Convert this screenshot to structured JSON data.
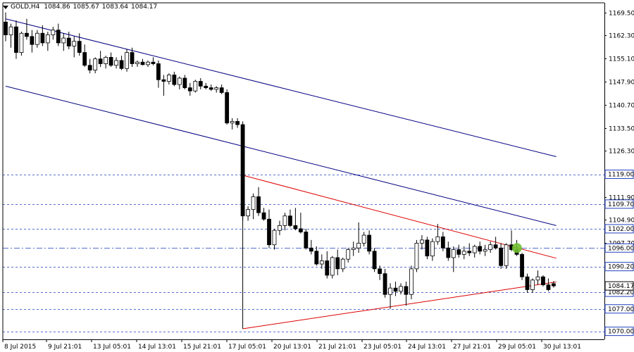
{
  "window": {
    "symbol_timeframe": "GOLD,H4",
    "ohlc": [
      "1084.86",
      "1085.67",
      "1083.64",
      "1084.17"
    ]
  },
  "price_axis": {
    "range": [
      1067.5,
      1172.5
    ],
    "ticks": [
      "1169.50",
      "1162.30",
      "1155.10",
      "1147.90",
      "1140.70",
      "1133.50",
      "1126.30",
      "1111.90",
      "1104.90",
      "1097.70"
    ],
    "tick_values": [
      1169.5,
      1162.3,
      1155.1,
      1147.9,
      1140.7,
      1133.5,
      1126.3,
      1111.9,
      1104.9,
      1097.7
    ]
  },
  "time_axis": {
    "labels": [
      "8 Jul 2015",
      "9 Jul 21:01",
      "13 Jul 05:01",
      "14 Jul 13:01",
      "15 Jul 21:01",
      "17 Jul 05:01",
      "20 Jul 13:01",
      "21 Jul 21:01",
      "23 Jul 05:01",
      "24 Jul 13:01",
      "27 Jul 21:01",
      "29 Jul 05:01",
      "30 Jul 13:01"
    ]
  },
  "levels": [
    {
      "label": "1119.00",
      "value": 1119.0,
      "style": "dashed"
    },
    {
      "label": "1109.70",
      "value": 1109.7,
      "style": "dashed"
    },
    {
      "label": "1102.00",
      "value": 1102.0,
      "style": "dashed"
    },
    {
      "label": "1096.00",
      "value": 1096.0,
      "style": "dashdot"
    },
    {
      "label": "1090.20",
      "value": 1090.2,
      "style": "dashed"
    },
    {
      "label": "1082.20",
      "value": 1082.2,
      "style": "dashed"
    },
    {
      "label": "1077.00",
      "value": 1077.0,
      "style": "dashed"
    },
    {
      "label": "1070.00",
      "value": 1070.0,
      "style": "dashed"
    }
  ],
  "current_price": {
    "label": "1084.17",
    "value": 1084.17
  },
  "colors": {
    "level_line": "#1f3fbf",
    "channel_line": "#000080",
    "triangle_line": "#dd0000",
    "bull_body": "#ffffff",
    "bear_body": "#000000",
    "marker": "#70c030",
    "axis_label_border": "#1f3fbf"
  },
  "chart_data": {
    "type": "candlestick",
    "symbol": "GOLD",
    "timeframe": "H4",
    "candles": [
      [
        1166.5,
        1169.5,
        1160.5,
        1162.5
      ],
      [
        1162.5,
        1166.0,
        1158.5,
        1165.0
      ],
      [
        1165.0,
        1167.0,
        1155.0,
        1157.0
      ],
      [
        1157.0,
        1163.5,
        1156.0,
        1163.0
      ],
      [
        1163.0,
        1167.5,
        1161.0,
        1162.0
      ],
      [
        1162.0,
        1164.0,
        1157.0,
        1159.5
      ],
      [
        1159.5,
        1164.0,
        1158.5,
        1163.0
      ],
      [
        1163.0,
        1165.5,
        1159.0,
        1160.0
      ],
      [
        1160.0,
        1163.5,
        1157.5,
        1162.5
      ],
      [
        1162.5,
        1165.0,
        1161.0,
        1164.0
      ],
      [
        1164.0,
        1166.0,
        1159.0,
        1160.0
      ],
      [
        1160.0,
        1163.0,
        1157.5,
        1161.5
      ],
      [
        1161.5,
        1163.5,
        1158.0,
        1159.0
      ],
      [
        1159.0,
        1162.0,
        1155.5,
        1160.5
      ],
      [
        1160.5,
        1163.0,
        1156.0,
        1157.0
      ],
      [
        1157.0,
        1159.5,
        1152.5,
        1153.0
      ],
      [
        1153.0,
        1155.0,
        1150.5,
        1151.5
      ],
      [
        1151.5,
        1155.5,
        1150.5,
        1155.0
      ],
      [
        1155.0,
        1157.5,
        1152.5,
        1153.5
      ],
      [
        1153.5,
        1156.0,
        1152.0,
        1155.5
      ],
      [
        1155.5,
        1157.0,
        1152.5,
        1153.0
      ],
      [
        1153.0,
        1155.5,
        1152.0,
        1154.5
      ],
      [
        1154.5,
        1156.0,
        1151.5,
        1152.0
      ],
      [
        1152.0,
        1158.0,
        1151.0,
        1157.0
      ],
      [
        1157.0,
        1158.5,
        1152.5,
        1153.5
      ],
      [
        1153.5,
        1154.5,
        1152.5,
        1154.0
      ],
      [
        1154.0,
        1155.0,
        1153.0,
        1153.2
      ],
      [
        1153.2,
        1154.5,
        1152.5,
        1154.0
      ],
      [
        1154.0,
        1155.5,
        1153.0,
        1153.5
      ],
      [
        1153.5,
        1154.5,
        1146.0,
        1148.5
      ],
      [
        1148.5,
        1150.0,
        1143.5,
        1148.0
      ],
      [
        1148.0,
        1150.5,
        1147.0,
        1150.0
      ],
      [
        1150.0,
        1151.0,
        1146.5,
        1147.0
      ],
      [
        1147.0,
        1149.5,
        1145.5,
        1149.0
      ],
      [
        1149.0,
        1150.0,
        1145.5,
        1146.0
      ],
      [
        1146.0,
        1147.5,
        1143.5,
        1145.0
      ],
      [
        1145.0,
        1148.5,
        1144.5,
        1148.0
      ],
      [
        1148.0,
        1149.0,
        1145.5,
        1146.5
      ],
      [
        1146.5,
        1147.5,
        1145.5,
        1146.0
      ],
      [
        1146.0,
        1147.0,
        1145.0,
        1145.5
      ],
      [
        1145.5,
        1146.5,
        1144.5,
        1146.0
      ],
      [
        1146.0,
        1147.0,
        1144.0,
        1144.5
      ],
      [
        1144.5,
        1145.5,
        1134.5,
        1135.0
      ],
      [
        1135.0,
        1136.5,
        1133.0,
        1135.5
      ],
      [
        1135.5,
        1136.5,
        1133.5,
        1134.5
      ],
      [
        1134.5,
        1135.5,
        1104.5,
        1106.0
      ],
      [
        1106.0,
        1109.0,
        1104.5,
        1108.0
      ],
      [
        1108.0,
        1113.0,
        1105.0,
        1112.0
      ],
      [
        1112.0,
        1115.0,
        1106.0,
        1107.0
      ],
      [
        1107.0,
        1108.5,
        1104.5,
        1105.0
      ],
      [
        1105.0,
        1108.0,
        1096.0,
        1097.0
      ],
      [
        1097.0,
        1102.0,
        1095.5,
        1101.5
      ],
      [
        1101.5,
        1104.5,
        1100.0,
        1103.0
      ],
      [
        1103.0,
        1107.0,
        1101.5,
        1106.0
      ],
      [
        1106.0,
        1108.0,
        1102.5,
        1103.0
      ],
      [
        1103.0,
        1108.5,
        1101.5,
        1102.0
      ],
      [
        1102.0,
        1107.0,
        1100.5,
        1101.0
      ],
      [
        1101.0,
        1102.0,
        1095.5,
        1096.0
      ],
      [
        1096.0,
        1098.5,
        1094.0,
        1095.0
      ],
      [
        1095.0,
        1096.5,
        1090.5,
        1091.0
      ],
      [
        1091.0,
        1094.0,
        1089.5,
        1092.0
      ],
      [
        1092.0,
        1095.0,
        1086.5,
        1087.5
      ],
      [
        1087.5,
        1093.5,
        1086.5,
        1093.0
      ],
      [
        1093.0,
        1095.5,
        1087.5,
        1089.5
      ],
      [
        1089.5,
        1093.0,
        1088.5,
        1092.5
      ],
      [
        1092.5,
        1096.0,
        1091.5,
        1095.5
      ],
      [
        1095.5,
        1098.0,
        1093.5,
        1096.0
      ],
      [
        1096.0,
        1104.0,
        1094.5,
        1097.5
      ],
      [
        1097.5,
        1101.0,
        1096.5,
        1100.0
      ],
      [
        1100.0,
        1101.5,
        1094.0,
        1095.0
      ],
      [
        1095.0,
        1096.0,
        1088.5,
        1089.5
      ],
      [
        1089.5,
        1090.5,
        1086.0,
        1088.0
      ],
      [
        1088.0,
        1089.5,
        1080.5,
        1081.5
      ],
      [
        1081.5,
        1085.0,
        1077.0,
        1083.5
      ],
      [
        1083.5,
        1085.5,
        1081.0,
        1082.5
      ],
      [
        1082.5,
        1085.0,
        1081.5,
        1084.0
      ],
      [
        1084.0,
        1085.5,
        1078.0,
        1081.5
      ],
      [
        1081.5,
        1090.5,
        1080.0,
        1089.5
      ],
      [
        1089.5,
        1098.5,
        1088.5,
        1097.5
      ],
      [
        1097.5,
        1100.0,
        1095.5,
        1098.5
      ],
      [
        1098.5,
        1099.5,
        1092.5,
        1093.5
      ],
      [
        1093.5,
        1099.0,
        1092.0,
        1098.0
      ],
      [
        1098.0,
        1103.5,
        1097.0,
        1099.5
      ],
      [
        1099.5,
        1101.0,
        1095.0,
        1096.0
      ],
      [
        1096.0,
        1098.0,
        1092.0,
        1093.0
      ],
      [
        1093.0,
        1096.5,
        1088.5,
        1095.5
      ],
      [
        1095.5,
        1097.0,
        1093.0,
        1094.0
      ],
      [
        1094.0,
        1096.5,
        1092.5,
        1095.0
      ],
      [
        1095.0,
        1097.5,
        1093.5,
        1094.5
      ],
      [
        1094.5,
        1097.0,
        1093.0,
        1096.5
      ],
      [
        1096.5,
        1098.0,
        1094.0,
        1095.0
      ],
      [
        1095.0,
        1097.0,
        1093.5,
        1095.5
      ],
      [
        1095.5,
        1098.0,
        1094.5,
        1097.0
      ],
      [
        1097.0,
        1099.5,
        1095.5,
        1096.0
      ],
      [
        1096.0,
        1097.5,
        1089.5,
        1090.5
      ],
      [
        1090.5,
        1097.5,
        1089.5,
        1097.0
      ],
      [
        1097.0,
        1101.5,
        1095.0,
        1095.5
      ],
      [
        1095.5,
        1098.5,
        1093.5,
        1094.0
      ],
      [
        1094.0,
        1094.5,
        1086.0,
        1087.0
      ],
      [
        1087.0,
        1088.0,
        1082.0,
        1083.0
      ],
      [
        1083.0,
        1086.5,
        1082.0,
        1086.0
      ],
      [
        1086.0,
        1089.0,
        1084.5,
        1087.0
      ],
      [
        1087.0,
        1087.5,
        1084.0,
        1084.5
      ],
      [
        1084.5,
        1086.5,
        1082.5,
        1083.0
      ],
      [
        1084.86,
        1085.67,
        1083.64,
        1084.17
      ]
    ],
    "trendlines": [
      {
        "name": "channel-upper",
        "color": "#000080",
        "points": [
          [
            0,
            1167.5
          ],
          [
            104.5,
            1124.5
          ]
        ]
      },
      {
        "name": "channel-lower",
        "color": "#000080",
        "points": [
          [
            0,
            1146.5
          ],
          [
            104.5,
            1103.0
          ]
        ]
      },
      {
        "name": "triangle-upper",
        "color": "#dd0000",
        "points": [
          [
            45.0,
            1118.7
          ],
          [
            104.5,
            1092.8
          ]
        ]
      },
      {
        "name": "triangle-lower",
        "color": "#dd0000",
        "points": [
          [
            45.0,
            1070.8
          ],
          [
            104.5,
            1085.4
          ]
        ]
      },
      {
        "name": "triangle-left",
        "color": "#000000",
        "points": [
          [
            45.0,
            1118.7
          ],
          [
            45.0,
            1070.8
          ]
        ]
      }
    ],
    "marker": {
      "index": 96.5,
      "value": 1096.0,
      "color": "#70c030"
    },
    "ylim": [
      1067.5,
      1172.5
    ],
    "grid": false
  }
}
